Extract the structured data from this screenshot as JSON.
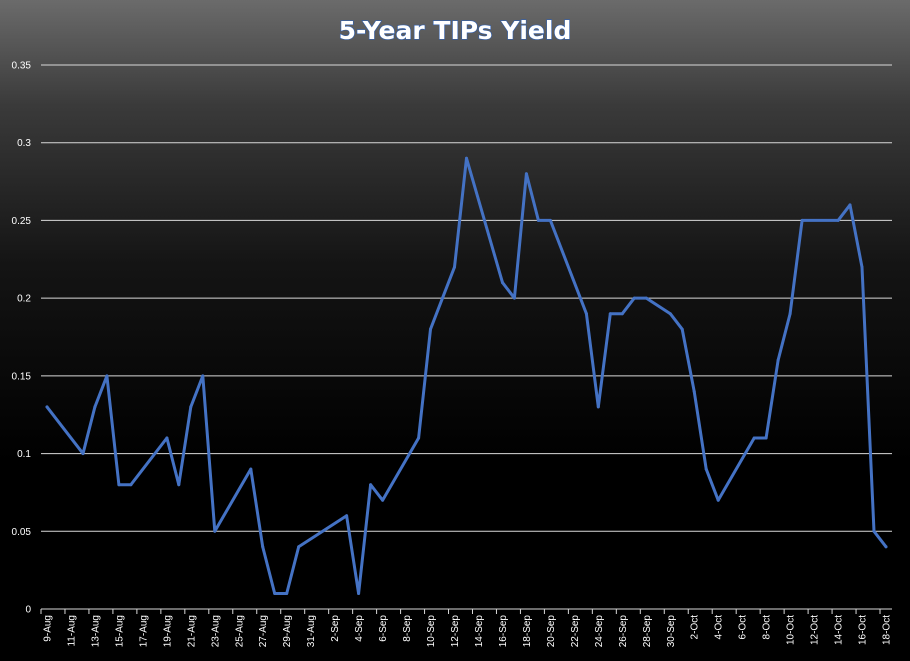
{
  "chart_data": {
    "type": "line",
    "title": "5-Year TIPs Yield",
    "xlabel": "",
    "ylabel": "",
    "ylim": [
      0,
      0.35
    ],
    "yticks": [
      "0",
      "0.05",
      "0.1",
      "0.15",
      "0.2",
      "0.25",
      "0.3",
      "0.35"
    ],
    "grid": true,
    "legend": "none",
    "line_color": "#4472c4",
    "x_tick_labels": [
      "9-Aug",
      "11-Aug",
      "13-Aug",
      "15-Aug",
      "17-Aug",
      "19-Aug",
      "21-Aug",
      "23-Aug",
      "25-Aug",
      "27-Aug",
      "29-Aug",
      "31-Aug",
      "2-Sep",
      "4-Sep",
      "6-Sep",
      "8-Sep",
      "10-Sep",
      "12-Sep",
      "14-Sep",
      "16-Sep",
      "18-Sep",
      "20-Sep",
      "22-Sep",
      "24-Sep",
      "26-Sep",
      "28-Sep",
      "30-Sep",
      "2-Oct",
      "4-Oct",
      "6-Oct",
      "8-Oct",
      "10-Oct",
      "12-Oct",
      "14-Oct",
      "16-Oct",
      "18-Oct"
    ],
    "x": [
      "9-Aug",
      "12-Aug",
      "13-Aug",
      "14-Aug",
      "15-Aug",
      "16-Aug",
      "19-Aug",
      "20-Aug",
      "21-Aug",
      "22-Aug",
      "23-Aug",
      "26-Aug",
      "27-Aug",
      "28-Aug",
      "29-Aug",
      "30-Aug",
      "3-Sep",
      "4-Sep",
      "5-Sep",
      "6-Sep",
      "9-Sep",
      "10-Sep",
      "11-Sep",
      "12-Sep",
      "13-Sep",
      "16-Sep",
      "17-Sep",
      "18-Sep",
      "19-Sep",
      "20-Sep",
      "23-Sep",
      "24-Sep",
      "25-Sep",
      "26-Sep",
      "27-Sep",
      "28-Sep",
      "30-Sep",
      "1-Oct",
      "2-Oct",
      "3-Oct",
      "4-Oct",
      "7-Oct",
      "8-Oct",
      "9-Oct",
      "10-Oct",
      "11-Oct",
      "14-Oct",
      "15-Oct",
      "16-Oct",
      "17-Oct",
      "18-Oct"
    ],
    "series": [
      {
        "name": "",
        "values": [
          0.13,
          0.1,
          0.13,
          0.15,
          0.08,
          0.08,
          0.11,
          0.08,
          0.13,
          0.15,
          0.05,
          0.09,
          0.04,
          0.01,
          0.01,
          0.04,
          0.06,
          0.01,
          0.08,
          0.07,
          0.11,
          0.18,
          0.2,
          0.22,
          0.29,
          0.21,
          0.2,
          0.28,
          0.25,
          0.25,
          0.19,
          0.13,
          0.19,
          0.19,
          0.2,
          0.2,
          0.19,
          0.18,
          0.14,
          0.09,
          0.07,
          0.11,
          0.11,
          0.16,
          0.19,
          0.25,
          0.25,
          0.26,
          0.22,
          0.05,
          0.04
        ]
      }
    ]
  }
}
